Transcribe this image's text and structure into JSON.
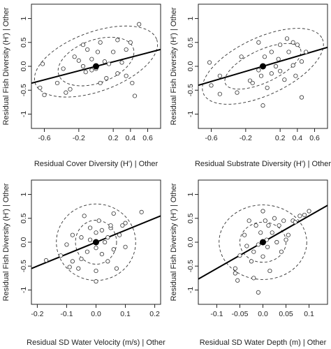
{
  "chart_data": [
    {
      "type": "scatter",
      "xlabel": "Residual Cover Diversity (H') | Other",
      "ylabel": "Residual Fish Diversity (H') | Other",
      "xlim": [
        -0.75,
        0.75
      ],
      "ylim": [
        -1.3,
        1.3
      ],
      "xticks": [
        -0.6,
        -0.2,
        0.2,
        0.4,
        0.6
      ],
      "yticks": [
        -1.0,
        -0.5,
        0.0,
        0.5,
        1.0
      ],
      "points": [
        [
          -0.62,
          0.05
        ],
        [
          -0.65,
          -0.45
        ],
        [
          -0.6,
          -0.6
        ],
        [
          -0.45,
          -0.35
        ],
        [
          -0.38,
          -0.05
        ],
        [
          -0.35,
          -0.55
        ],
        [
          -0.3,
          -0.48
        ],
        [
          -0.25,
          0.2
        ],
        [
          -0.2,
          0.12
        ],
        [
          -0.15,
          0.45
        ],
        [
          -0.15,
          0.0
        ],
        [
          -0.12,
          -0.12
        ],
        [
          -0.1,
          0.35
        ],
        [
          -0.05,
          0.15
        ],
        [
          -0.05,
          -0.08
        ],
        [
          0.0,
          -0.05
        ],
        [
          0.02,
          0.3
        ],
        [
          0.05,
          -0.35
        ],
        [
          0.05,
          0.5
        ],
        [
          0.1,
          0.1
        ],
        [
          0.12,
          -0.25
        ],
        [
          0.15,
          0.05
        ],
        [
          0.2,
          0.3
        ],
        [
          0.25,
          -0.15
        ],
        [
          0.25,
          0.55
        ],
        [
          0.3,
          0.08
        ],
        [
          0.35,
          -0.2
        ],
        [
          0.35,
          0.35
        ],
        [
          0.4,
          0.5
        ],
        [
          0.42,
          -0.35
        ],
        [
          0.45,
          -0.62
        ],
        [
          0.5,
          0.88
        ]
      ],
      "centroid": [
        0.0,
        0.0
      ],
      "fit_line": {
        "intercept": 0.0,
        "slope": 0.47
      },
      "ellipses": [
        {
          "center": [
            0.0,
            0.1
          ],
          "rx": 0.46,
          "ry": 0.45,
          "angle_deg": 20
        },
        {
          "center": [
            0.0,
            0.1
          ],
          "rx": 0.75,
          "ry": 0.62,
          "angle_deg": 20
        }
      ]
    },
    {
      "type": "scatter",
      "xlabel": "Residual Substrate Diversity (H') | Other",
      "ylabel": "Residual Fish Diversity (H') | Other",
      "xlim": [
        -0.75,
        0.75
      ],
      "ylim": [
        -1.3,
        1.3
      ],
      "xticks": [
        -0.6,
        -0.2,
        0.2,
        0.4,
        0.6
      ],
      "yticks": [
        -1.0,
        -0.5,
        0.0,
        0.5,
        1.0
      ],
      "points": [
        [
          -0.6,
          -0.4
        ],
        [
          -0.5,
          -0.58
        ],
        [
          -0.3,
          -0.55
        ],
        [
          -0.25,
          0.2
        ],
        [
          -0.15,
          -0.3
        ],
        [
          -0.12,
          -0.35
        ],
        [
          -0.05,
          -0.08
        ],
        [
          -0.05,
          0.5
        ],
        [
          -0.02,
          -0.2
        ],
        [
          0.0,
          -0.82
        ],
        [
          0.02,
          0.2
        ],
        [
          0.05,
          -0.45
        ],
        [
          0.1,
          0.3
        ],
        [
          0.1,
          -0.15
        ],
        [
          0.15,
          0.0
        ],
        [
          0.18,
          0.15
        ],
        [
          0.2,
          0.45
        ],
        [
          0.2,
          -0.1
        ],
        [
          0.25,
          -0.28
        ],
        [
          0.28,
          0.58
        ],
        [
          0.3,
          0.3
        ],
        [
          0.35,
          0.02
        ],
        [
          0.38,
          -0.2
        ],
        [
          0.4,
          0.45
        ],
        [
          0.45,
          0.1
        ],
        [
          0.45,
          -0.65
        ],
        [
          -0.62,
          0.08
        ],
        [
          -0.5,
          -0.2
        ],
        [
          0.5,
          0.3
        ],
        [
          0.35,
          0.5
        ]
      ],
      "centroid": [
        0.0,
        0.0
      ],
      "fit_line": {
        "intercept": 0.0,
        "slope": 0.53
      },
      "ellipses": [
        {
          "center": [
            0.0,
            0.0
          ],
          "rx": 0.48,
          "ry": 0.34,
          "angle_deg": 25
        },
        {
          "center": [
            0.0,
            0.0
          ],
          "rx": 0.76,
          "ry": 0.6,
          "angle_deg": 25
        }
      ]
    },
    {
      "type": "scatter",
      "xlabel": "Residual SD Water Velocity (m/s) | Other",
      "ylabel": "Residual Fish Diversity (H') | Other",
      "xlim": [
        -0.22,
        0.22
      ],
      "ylim": [
        -1.3,
        1.3
      ],
      "xticks": [
        -0.2,
        -0.1,
        0.0,
        0.1,
        0.2
      ],
      "yticks": [
        -1.0,
        -0.5,
        0.0,
        0.5,
        1.0
      ],
      "points": [
        [
          -0.17,
          -0.38
        ],
        [
          -0.12,
          -0.28
        ],
        [
          -0.1,
          -0.05
        ],
        [
          -0.08,
          0.15
        ],
        [
          -0.08,
          -0.4
        ],
        [
          -0.06,
          -0.55
        ],
        [
          -0.05,
          0.1
        ],
        [
          -0.04,
          0.55
        ],
        [
          -0.03,
          -0.2
        ],
        [
          -0.02,
          0.3
        ],
        [
          -0.02,
          0.05
        ],
        [
          0.0,
          0.2
        ],
        [
          0.0,
          -0.12
        ],
        [
          0.0,
          -0.6
        ],
        [
          0.01,
          0.45
        ],
        [
          0.02,
          -0.25
        ],
        [
          0.02,
          0.25
        ],
        [
          0.03,
          0.0
        ],
        [
          0.04,
          0.1
        ],
        [
          0.04,
          -0.4
        ],
        [
          0.05,
          0.3
        ],
        [
          0.05,
          0.35
        ],
        [
          0.06,
          0.6
        ],
        [
          0.06,
          -0.15
        ],
        [
          0.07,
          -0.55
        ],
        [
          0.08,
          0.15
        ],
        [
          0.09,
          0.35
        ],
        [
          0.1,
          -0.1
        ],
        [
          0.1,
          0.4
        ],
        [
          -0.05,
          -0.35
        ],
        [
          0.155,
          0.63
        ],
        [
          0.0,
          -0.82
        ],
        [
          -0.09,
          -0.52
        ]
      ],
      "centroid": [
        0.0,
        0.0
      ],
      "fit_line": {
        "intercept": 0.0,
        "slope": 2.5
      },
      "ellipses": [
        {
          "center": [
            0.0,
            0.0
          ],
          "rx": 0.07,
          "ry": 0.46,
          "angle_deg": 0
        },
        {
          "center": [
            0.0,
            0.0
          ],
          "rx": 0.135,
          "ry": 0.8,
          "angle_deg": 0
        }
      ]
    },
    {
      "type": "scatter",
      "xlabel": "Residual SD Water Depth (m) | Other",
      "ylabel": "Residual Fish Diversity (H') | Other",
      "xlim": [
        -0.14,
        0.14
      ],
      "ylim": [
        -1.3,
        1.3
      ],
      "xticks": [
        -0.1,
        -0.05,
        0.0,
        0.05,
        0.1
      ],
      "yticks": [
        -1.0,
        -0.5,
        0.0,
        0.5,
        1.0
      ],
      "points": [
        [
          -0.06,
          -0.65
        ],
        [
          -0.055,
          -0.8
        ],
        [
          -0.05,
          -0.28
        ],
        [
          -0.04,
          0.15
        ],
        [
          -0.035,
          -0.08
        ],
        [
          -0.03,
          0.45
        ],
        [
          -0.025,
          -0.4
        ],
        [
          -0.02,
          -0.75
        ],
        [
          -0.02,
          -0.2
        ],
        [
          -0.015,
          0.35
        ],
        [
          -0.01,
          -0.05
        ],
        [
          -0.01,
          -1.05
        ],
        [
          -0.005,
          0.2
        ],
        [
          0.0,
          -0.3
        ],
        [
          0.005,
          0.45
        ],
        [
          0.008,
          0.05
        ],
        [
          0.01,
          -0.1
        ],
        [
          0.012,
          0.35
        ],
        [
          0.015,
          -0.6
        ],
        [
          0.02,
          0.2
        ],
        [
          0.025,
          0.5
        ],
        [
          0.03,
          0.0
        ],
        [
          0.035,
          0.35
        ],
        [
          0.04,
          -0.2
        ],
        [
          0.045,
          0.45
        ],
        [
          0.05,
          0.05
        ],
        [
          0.055,
          0.15
        ],
        [
          0.065,
          0.45
        ],
        [
          0.07,
          0.42
        ],
        [
          0.08,
          0.55
        ],
        [
          0.09,
          0.57
        ],
        [
          0.1,
          0.65
        ],
        [
          -0.06,
          -0.55
        ],
        [
          0.0,
          0.65
        ]
      ],
      "centroid": [
        0.0,
        0.0
      ],
      "fit_line": {
        "intercept": 0.0,
        "slope": 5.5
      },
      "ellipses": [
        {
          "center": [
            0.0,
            0.0
          ],
          "rx": 0.05,
          "ry": 0.42,
          "angle_deg": 0
        },
        {
          "center": [
            0.0,
            0.0
          ],
          "rx": 0.095,
          "ry": 0.78,
          "angle_deg": 0
        }
      ]
    }
  ]
}
